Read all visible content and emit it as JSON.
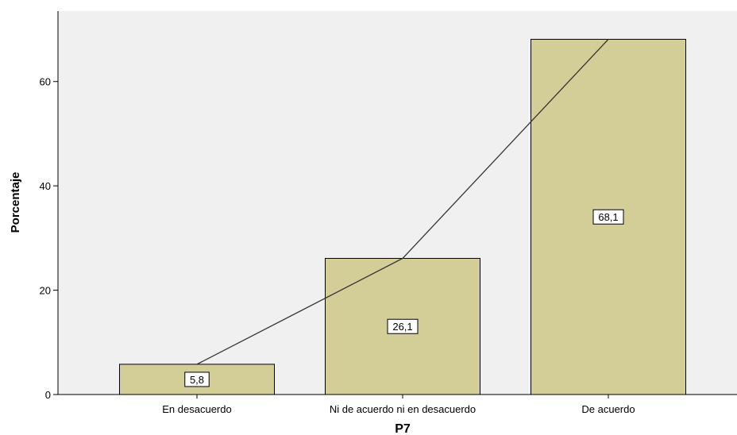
{
  "chart_data": {
    "type": "bar",
    "title": "",
    "xlabel": "P7",
    "ylabel": "Porcentaje",
    "categories": [
      "En desacuerdo",
      "Ni de acuerdo ni en desacuerdo",
      "De acuerdo"
    ],
    "values": [
      5.8,
      26.1,
      68.1
    ],
    "data_labels": [
      "5,8",
      "26,1",
      "68,1"
    ],
    "line_overlay": true,
    "ylim": [
      0,
      73.5
    ],
    "yticks": [
      0,
      20,
      40,
      60
    ],
    "grid": false,
    "colors": {
      "plot_background": "#f0f0f0",
      "bar_fill": "#d3ce97",
      "bar_stroke": "#000000",
      "line": "#333333"
    }
  }
}
